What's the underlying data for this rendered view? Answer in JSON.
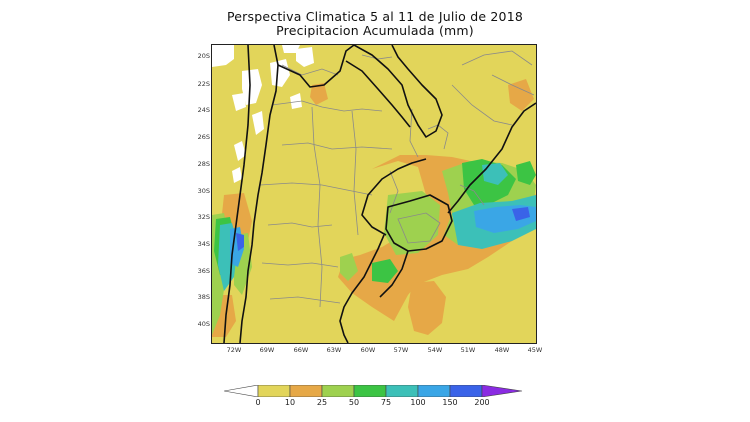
{
  "title": {
    "line1": "Perspectiva Climatica 5 al 11 de Julio de 2018",
    "line2": "Precipitacion Acumulada (mm)"
  },
  "map": {
    "lat_labels": [
      "20S",
      "22S",
      "24S",
      "26S",
      "28S",
      "30S",
      "32S",
      "34S",
      "36S",
      "38S",
      "40S"
    ],
    "lon_labels": [
      "72W",
      "69W",
      "66W",
      "63W",
      "60W",
      "57W",
      "54W",
      "51W",
      "48W",
      "45W"
    ]
  },
  "legend": {
    "levels": [
      "0",
      "10",
      "25",
      "50",
      "75",
      "100",
      "150",
      "200"
    ],
    "colors": {
      "white": "#ffffff",
      "yellow": "#e2d55a",
      "orange": "#e6a847",
      "light_green": "#9ed14f",
      "green": "#3cc444",
      "cyan": "#3cc0b8",
      "light_blue": "#3aa6e6",
      "blue": "#3a63e8",
      "purple": "#8a2be2"
    }
  }
}
